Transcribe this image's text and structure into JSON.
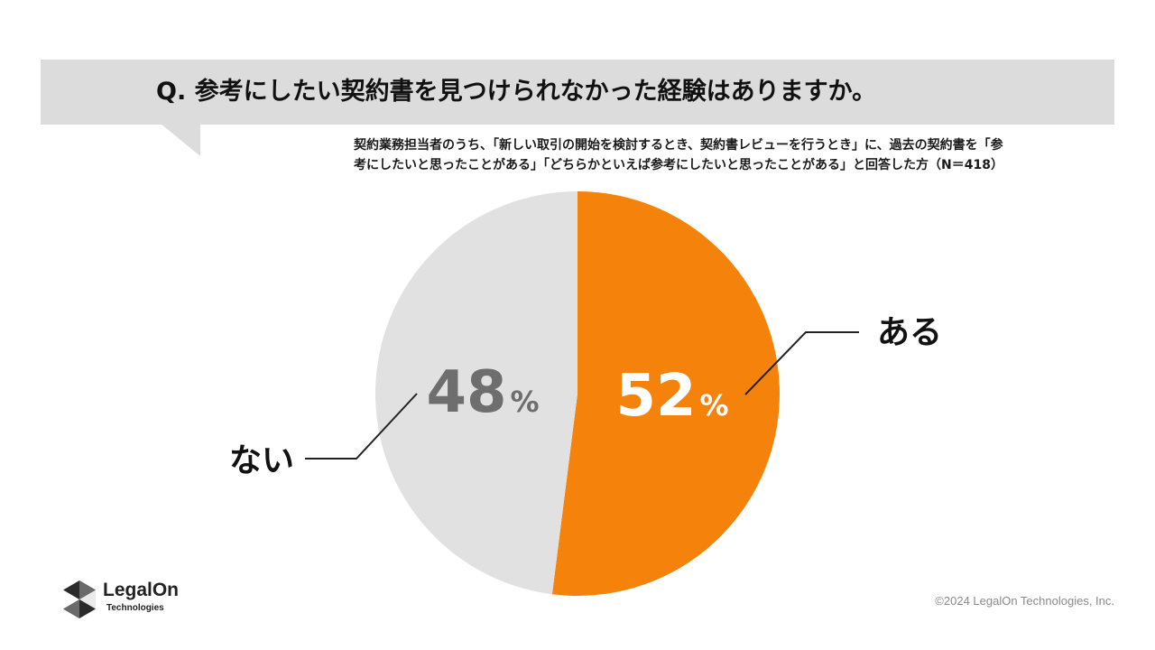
{
  "question": {
    "text": "Q. 参考にしたい契約書を見つけられなかった経験はありますか。"
  },
  "subtitle": {
    "line1": "契約業務担当者のうち、「新しい取引の開始を検討するとき、契約書レビューを行うとき」に、過去の契約書を「参",
    "line2": "考にしたいと思ったことがある」「どちらかといえば参考にしたいと思ったことがある」と回答した方（N＝418）"
  },
  "chart_data": {
    "type": "pie",
    "unit": "%",
    "slices": [
      {
        "label": "ある",
        "value": 52,
        "color": "#f5820a",
        "value_color": "#ffffff"
      },
      {
        "label": "ない",
        "value": 48,
        "color": "#e1e1e1",
        "value_color": "#6e6e6e"
      }
    ],
    "start": "12 o'clock",
    "direction": "clockwise",
    "legend": "none"
  },
  "logo": {
    "name": "LegalOn",
    "sub": "Technologies",
    "icon": "legalon-hexagon-logo-icon"
  },
  "footer": {
    "copyright": "©2024 LegalOn Technologies, Inc."
  }
}
